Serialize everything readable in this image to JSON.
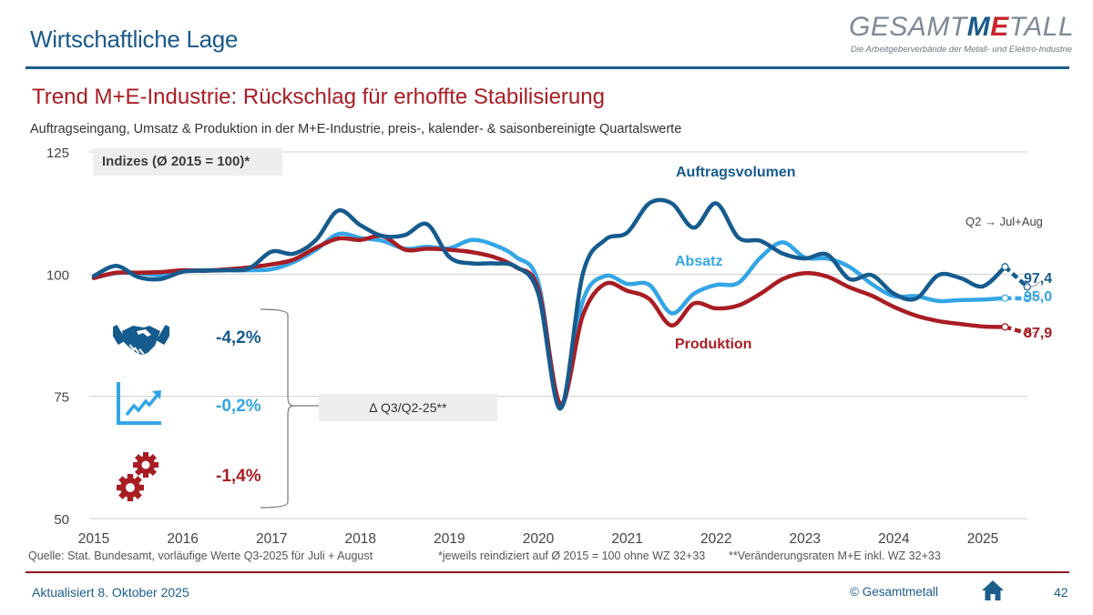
{
  "header": {
    "section_title": "Wirtschaftliche Lage",
    "logo": {
      "prefix": "GESAMT",
      "me_m": "M",
      "me_e": "E",
      "suffix": "TALL",
      "tagline": "Die Arbeitgeberverbände der Metall- und Elektro-Industrie"
    }
  },
  "slide": {
    "title": "Trend M+E-Industrie:  Rückschlag für erhoffte Stabilisierung",
    "subtitle": "Auftragseingang, Umsatz & Produktion in der M+E-Industrie, preis-, kalender- & saisonbereinigte Quartalswerte",
    "index_note": "Indizes (Ø 2015 = 100)*",
    "quarter_note": "Q2 → Jul+Aug",
    "delta_label": "∆ Q3/Q2-25**",
    "kpis": [
      {
        "key": "orders",
        "icon": "handshake-icon",
        "value": "-4,2%"
      },
      {
        "key": "sales",
        "icon": "growth-chart-icon",
        "value": "-0,2%"
      },
      {
        "key": "production",
        "icon": "gears-icon",
        "value": "-1,4%"
      }
    ]
  },
  "colors": {
    "orders": "#165b8e",
    "sales": "#34a5e6",
    "production": "#a81d23",
    "grid": "#d0d0d0"
  },
  "chart_data": {
    "type": "line",
    "title": "Trend M+E-Industrie: Rückschlag für erhoffte Stabilisierung",
    "xlabel": "",
    "ylabel": "Indizes (Ø 2015 = 100)",
    "ylim": [
      50,
      125
    ],
    "yticks": [
      50,
      75,
      100,
      125
    ],
    "xlim": [
      2015.0,
      2025.6
    ],
    "xticks": [
      "2015",
      "2016",
      "2017",
      "2018",
      "2019",
      "2020",
      "2021",
      "2022",
      "2023",
      "2024",
      "2025"
    ],
    "grid": true,
    "legend": "inline-labels",
    "x_description": "quarters from 2015 Q1 to 2025 Q2, plus provisional Q3-2025 (Jul+Aug)",
    "x": [
      2015.0,
      2015.25,
      2015.5,
      2015.75,
      2016.0,
      2016.25,
      2016.5,
      2016.75,
      2017.0,
      2017.25,
      2017.5,
      2017.75,
      2018.0,
      2018.25,
      2018.5,
      2018.75,
      2019.0,
      2019.25,
      2019.5,
      2019.75,
      2020.0,
      2020.25,
      2020.5,
      2020.75,
      2021.0,
      2021.25,
      2021.5,
      2021.75,
      2022.0,
      2022.25,
      2022.5,
      2022.75,
      2023.0,
      2023.25,
      2023.5,
      2023.75,
      2024.0,
      2024.25,
      2024.5,
      2024.75,
      2025.0,
      2025.25,
      2025.5
    ],
    "series": [
      {
        "name": "Auftragsvolumen",
        "key": "orders",
        "values": [
          99.6,
          101.7,
          99.4,
          99.0,
          100.5,
          100.7,
          100.8,
          101.2,
          104.6,
          104.2,
          107.0,
          113.0,
          110.0,
          107.8,
          108.0,
          110.2,
          103.5,
          102.2,
          102.2,
          101.5,
          96.0,
          72.5,
          100.0,
          107.0,
          108.5,
          114.5,
          114.5,
          109.5,
          114.5,
          107.5,
          106.8,
          104.2,
          103.2,
          104.0,
          99.0,
          99.8,
          96.0,
          95.0,
          99.8,
          99.2,
          97.5,
          101.5,
          97.4
        ],
        "end_label": "97,4"
      },
      {
        "name": "Absatz",
        "key": "sales",
        "values": [
          99.2,
          100.2,
          100.2,
          99.8,
          100.6,
          100.8,
          100.8,
          100.8,
          101.0,
          102.5,
          105.0,
          108.2,
          107.4,
          106.8,
          105.2,
          105.6,
          105.3,
          107.0,
          106.0,
          103.5,
          98.3,
          72.8,
          94.5,
          99.6,
          98.0,
          97.8,
          92.0,
          96.0,
          97.8,
          98.2,
          103.4,
          106.5,
          103.4,
          103.2,
          101.5,
          98.0,
          95.5,
          95.5,
          94.5,
          94.7,
          94.8,
          95.1,
          95.0
        ],
        "end_label": "95,0"
      },
      {
        "name": "Produktion",
        "key": "production",
        "values": [
          99.2,
          100.3,
          100.3,
          100.4,
          100.8,
          100.7,
          101.0,
          101.4,
          102.0,
          103.0,
          105.4,
          107.3,
          107.0,
          107.8,
          105.0,
          105.2,
          105.0,
          104.5,
          103.5,
          101.4,
          97.0,
          73.5,
          91.5,
          98.0,
          96.6,
          94.9,
          89.5,
          94.0,
          93.0,
          93.6,
          96.0,
          99.0,
          100.2,
          99.5,
          97.3,
          95.6,
          93.3,
          91.5,
          90.4,
          89.8,
          89.3,
          89.2,
          87.9
        ],
        "end_label": "87,9"
      }
    ]
  },
  "footer": {
    "source": "Quelle: Stat. Bundesamt, vorläufige Werte Q3-2025 für Juli + August",
    "footnote_1": "*jeweils reindiziert auf Ø 2015 = 100 ohne WZ 32+33",
    "footnote_2": "**Veränderungsraten M+E inkl. WZ 32+33",
    "updated": "Aktualisiert 8. Oktober 2025",
    "copyright": "© Gesamtmetall",
    "page_number": "42"
  }
}
